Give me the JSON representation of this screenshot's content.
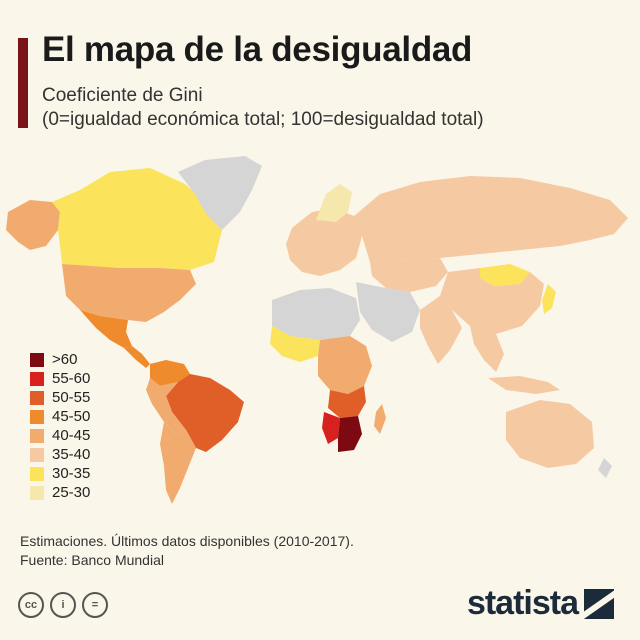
{
  "header": {
    "title": "El mapa de la desigualdad",
    "subtitle_line1": "Coeficiente de Gini",
    "subtitle_line2": "(0=igualdad económica total; 100=desigualdad total)"
  },
  "legend": {
    "items": [
      {
        "label": ">60",
        "color": "#7d0a12"
      },
      {
        "label": "55-60",
        "color": "#d7211f"
      },
      {
        "label": "50-55",
        "color": "#e05f28"
      },
      {
        "label": "45-50",
        "color": "#ef8b2c"
      },
      {
        "label": "40-45",
        "color": "#f2ab6e"
      },
      {
        "label": "35-40",
        "color": "#f5c9a2"
      },
      {
        "label": "30-35",
        "color": "#fbe35c"
      },
      {
        "label": "25-30",
        "color": "#f6e8ad"
      }
    ]
  },
  "colors": {
    "no_data": "#d5d5d5",
    "accent": "#7a1418",
    "brand": "#1b2b3a"
  },
  "footer": {
    "note": "Estimaciones. Últimos datos disponibles (2010-2017).",
    "source": "Fuente: Banco Mundial",
    "brand_name": "statista",
    "license_icons": [
      "cc-icon",
      "by-icon",
      "nd-icon"
    ],
    "license_labels": [
      "cc",
      "i",
      "="
    ]
  }
}
